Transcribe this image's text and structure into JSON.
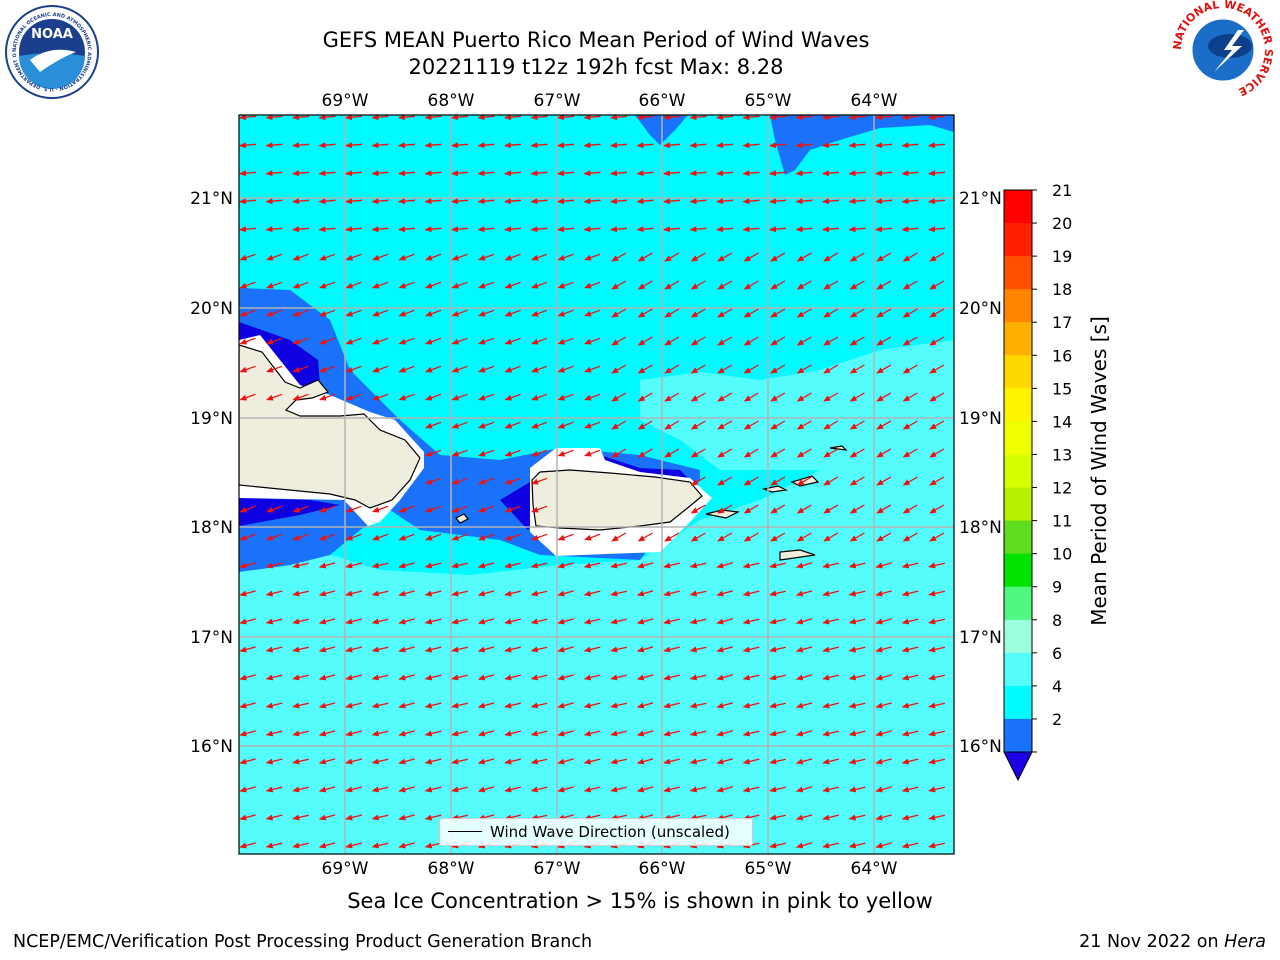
{
  "title": {
    "line1": "GEFS MEAN Puerto Rico Mean Period of Wind Waves",
    "line2": "20221119 t12z 192h fcst   Max: 8.28"
  },
  "map": {
    "lon_ticks": [
      "69°W",
      "68°W",
      "67°W",
      "66°W",
      "65°W",
      "64°W"
    ],
    "lat_ticks": [
      "21°N",
      "20°N",
      "19°N",
      "18°N",
      "17°N",
      "16°N"
    ],
    "legend_label": "Wind Wave Direction (unscaled)",
    "colors": {
      "land": "#efedde",
      "cyan_light": "#54fcfc",
      "cyan": "#00faff",
      "blue": "#1a72fa",
      "dark_blue": "#0e00e0",
      "arrow": "#ee1111"
    }
  },
  "colorbar": {
    "title": "Mean Period of Wind Waves [s]",
    "labels": [
      "21",
      "20",
      "19",
      "18",
      "17",
      "16",
      "15",
      "14",
      "13",
      "12",
      "11",
      "10",
      "9",
      "8",
      "6",
      "4",
      "2"
    ],
    "colors": [
      "#ff0000",
      "#ff2000",
      "#ff5000",
      "#ff8400",
      "#ffb000",
      "#ffd800",
      "#fff400",
      "#f0ff00",
      "#d8ff00",
      "#b4f000",
      "#60dc20",
      "#00e400",
      "#50f880",
      "#9cffe0",
      "#54fcfc",
      "#00faff",
      "#1a72fa"
    ],
    "under_color": "#1c00e8"
  },
  "logos": {
    "noaa_text": "NOAA",
    "noaa_ring": "NATIONAL OCEANIC AND ATMOSPHERIC ADMINISTRATION · U.S. DEPARTMENT OF COMMERCE",
    "nws_ring": "NATIONAL WEATHER SERVICE"
  },
  "note": "Sea Ice Concentration > 15% is shown in pink to yellow",
  "footer": {
    "left": "NCEP/EMC/Verification Post Processing Product Generation Branch",
    "date": "21 Nov 2022 on ",
    "machine": "Hera"
  }
}
